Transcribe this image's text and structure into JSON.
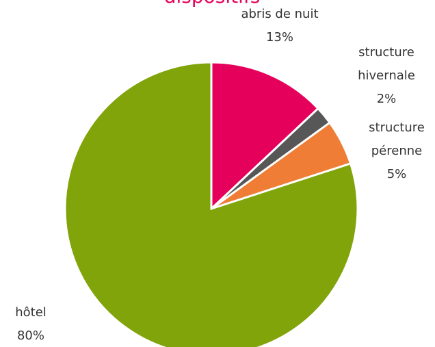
{
  "chart_data": {
    "type": "pie",
    "title": "dispositifs",
    "categories": [
      "abris de nuit",
      "structure hivernale",
      "structure pérenne",
      "hôtel"
    ],
    "values": [
      13,
      2,
      5,
      80
    ],
    "value_labels": [
      "13%",
      "2%",
      "5%",
      "80%"
    ],
    "colors": [
      "#e5005b",
      "#575757",
      "#ef7d35",
      "#80a40a"
    ]
  }
}
